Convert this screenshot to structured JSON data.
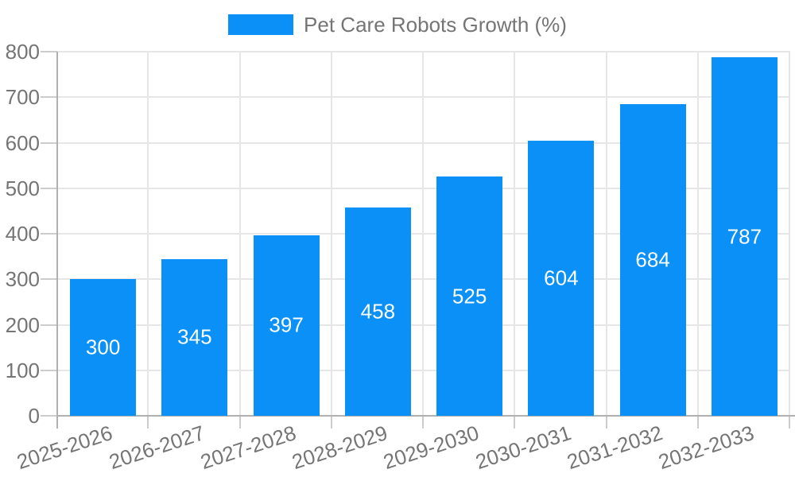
{
  "legend": {
    "label": "Pet Care Robots Growth (%)"
  },
  "chart_data": {
    "type": "bar",
    "title": "Pet Care Robots Growth (%)",
    "categories": [
      "2025-2026",
      "2026-2027",
      "2027-2028",
      "2028-2029",
      "2029-2030",
      "2030-2031",
      "2031-2032",
      "2032-2033"
    ],
    "values": [
      300,
      345,
      397,
      458,
      525,
      604,
      684,
      787
    ],
    "xlabel": "",
    "ylabel": "",
    "ylim": [
      0,
      800
    ],
    "ytick_step": 100,
    "yticks": [
      0,
      100,
      200,
      300,
      400,
      500,
      600,
      700,
      800
    ],
    "grid": true,
    "legend_position": "top-center",
    "value_labels": "inside-center",
    "colors": {
      "bar": "#0a90f6",
      "value_label": "#ffffff",
      "axis_text": "#757575",
      "gridline": "#e6e6e6",
      "axis_line": "#b0b0b0",
      "tick": "#cccccc",
      "background": "#ffffff"
    }
  }
}
